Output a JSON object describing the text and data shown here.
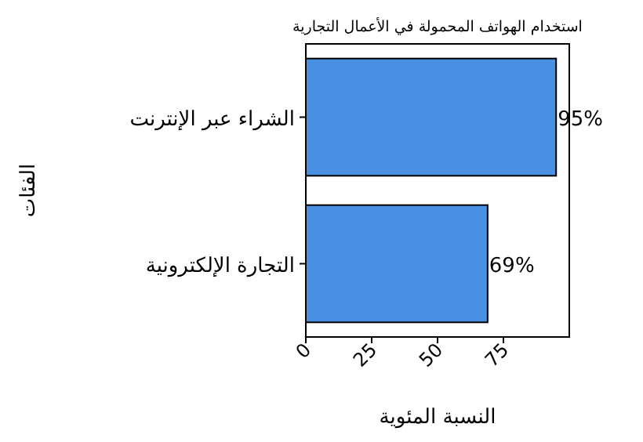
{
  "chart_data": {
    "type": "bar",
    "orientation": "horizontal",
    "title": "استخدام الهواتف المحمولة في الأعمال التجارية",
    "xlabel": "النسبة المئوية",
    "ylabel": "الفئات",
    "categories": [
      "الشراء عبر الإنترنت",
      "التجارة الإلكترونية"
    ],
    "values": [
      95,
      69
    ],
    "value_labels": [
      "95%",
      "69%"
    ],
    "color": "#4a90e2",
    "xlim": [
      0,
      100
    ],
    "xticks": [
      0,
      25,
      50,
      75
    ],
    "grid": false
  }
}
